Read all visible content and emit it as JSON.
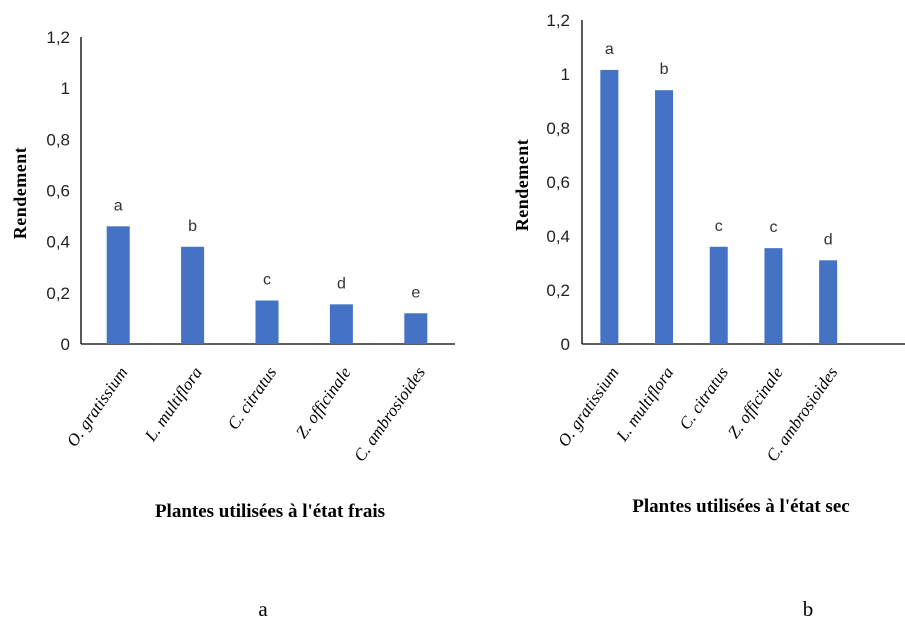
{
  "chart_data": [
    {
      "type": "bar",
      "panel_label": "a",
      "xlabel": "Plantes utilisées à l'état frais",
      "ylabel": "Rendement",
      "ylim": [
        0,
        1.2
      ],
      "yticks": [
        "0",
        "0,2",
        "0,4",
        "0,6",
        "0,8",
        "1",
        "1,2"
      ],
      "grid": false,
      "categories": [
        "O. gratissium",
        "L. multiflora",
        "C. citratus",
        "Z. officinale",
        "C. ambrosioides"
      ],
      "values": [
        0.46,
        0.38,
        0.17,
        0.155,
        0.12
      ],
      "labels": [
        "a",
        "b",
        "c",
        "d",
        "e"
      ],
      "color": "#4472C4"
    },
    {
      "type": "bar",
      "panel_label": "b",
      "xlabel": "Plantes utilisées à l'état sec",
      "ylabel": "Rendement",
      "ylim": [
        0,
        1.2
      ],
      "yticks": [
        "0",
        "0,2",
        "0,4",
        "0,6",
        "0,8",
        "1",
        "1,2"
      ],
      "grid": false,
      "categories": [
        "O. gratissium",
        "L. multiflora",
        "C. citratus",
        "Z. officinale",
        "C. ambrosioides"
      ],
      "values": [
        1.015,
        0.94,
        0.36,
        0.355,
        0.31
      ],
      "labels": [
        "a",
        "b",
        "c",
        "c",
        "d"
      ],
      "color": "#4472C4"
    }
  ]
}
